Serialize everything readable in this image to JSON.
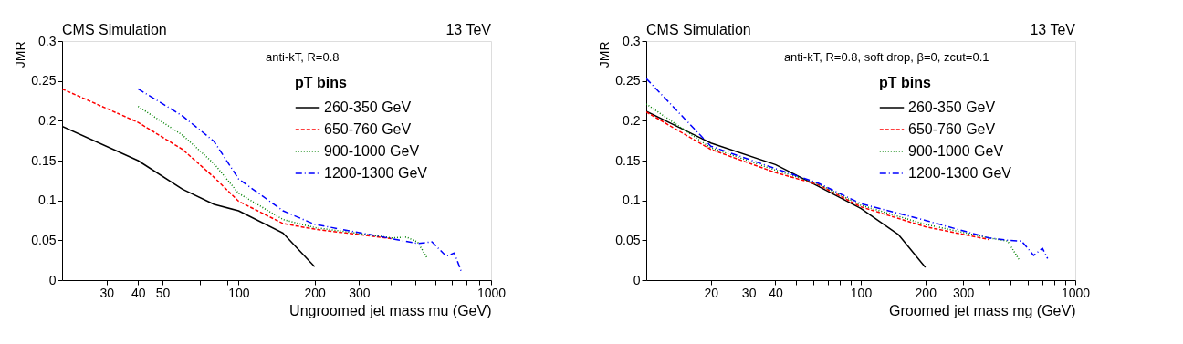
{
  "chart_data": [
    {
      "type": "line",
      "title": "CMS Simulation",
      "xlabel": "Ungroomed jet mass mu (GeV)",
      "ylabel": "JMR",
      "legend_title": "pT bins",
      "annotations": [
        "13 TeV",
        "anti-kT, R=0.8"
      ],
      "log": "x",
      "grid": false,
      "legend": "top right",
      "marker": "none",
      "xlim": [
        20,
        1000
      ],
      "ylim": [
        0,
        0.3
      ],
      "xticks": [
        30,
        40,
        50,
        {
          "value": 60,
          "label": null
        },
        {
          "value": 70,
          "label": null
        },
        {
          "value": 80,
          "label": null
        },
        {
          "value": 90,
          "label": null
        },
        100,
        200,
        300,
        {
          "value": 400,
          "label": null
        },
        {
          "value": 500,
          "label": null
        },
        {
          "value": 600,
          "label": null
        },
        {
          "value": 700,
          "label": null
        },
        {
          "value": 800,
          "label": null
        },
        {
          "value": 900,
          "label": null
        },
        1000
      ],
      "yticks": [
        0,
        0.05,
        0.1,
        0.15,
        0.2,
        0.25,
        0.3
      ],
      "series": [
        {
          "name": "260-350 GeV",
          "color": "#000000",
          "line_style": "solid",
          "x": [
            20,
            40,
            60,
            80,
            100,
            150,
            200
          ],
          "values": [
            0.193,
            0.15,
            0.114,
            0.095,
            0.087,
            0.059,
            0.017
          ]
        },
        {
          "name": "650-760 GeV",
          "color": "#ff0000",
          "line_style": "dashed",
          "x": [
            20,
            40,
            60,
            80,
            100,
            119,
            150,
            200,
            405
          ],
          "values": [
            0.24,
            0.198,
            0.164,
            0.129,
            0.099,
            0.087,
            0.071,
            0.064,
            0.052
          ]
        },
        {
          "name": "900-1000 GeV",
          "color": "#008000",
          "line_style": "dotted",
          "x": [
            40,
            60,
            80,
            100,
            150,
            200,
            405,
            462,
            511,
            558
          ],
          "values": [
            0.218,
            0.182,
            0.146,
            0.109,
            0.076,
            0.066,
            0.053,
            0.054,
            0.048,
            0.028
          ]
        },
        {
          "name": "1200-1300 GeV",
          "color": "#0000ff",
          "line_style": "dashdot",
          "x": [
            40,
            60,
            80,
            100,
            150,
            200,
            405,
            511,
            583,
            665,
            715,
            762
          ],
          "values": [
            0.24,
            0.206,
            0.174,
            0.127,
            0.087,
            0.07,
            0.052,
            0.046,
            0.048,
            0.03,
            0.034,
            0.011
          ]
        }
      ]
    },
    {
      "type": "line",
      "title": "CMS Simulation",
      "xlabel": "Groomed jet mass mg (GeV)",
      "ylabel": "JMR",
      "legend_title": "pT bins",
      "annotations": [
        "13 TeV",
        "anti-kT, R=0.8, soft drop, β=0, zcut=0.1"
      ],
      "log": "x",
      "grid": false,
      "legend": "top right",
      "marker": "none",
      "xlim": [
        10,
        1000
      ],
      "ylim": [
        0,
        0.3
      ],
      "xticks": [
        20,
        30,
        40,
        {
          "value": 50,
          "label": null
        },
        {
          "value": 60,
          "label": null
        },
        {
          "value": 70,
          "label": null
        },
        {
          "value": 80,
          "label": null
        },
        {
          "value": 90,
          "label": null
        },
        100,
        200,
        300,
        {
          "value": 400,
          "label": null
        },
        {
          "value": 500,
          "label": null
        },
        {
          "value": 600,
          "label": null
        },
        {
          "value": 700,
          "label": null
        },
        {
          "value": 800,
          "label": null
        },
        {
          "value": 900,
          "label": null
        },
        1000
      ],
      "yticks": [
        0,
        0.05,
        0.1,
        0.15,
        0.2,
        0.25,
        0.3
      ],
      "series": [
        {
          "name": "260-350 GeV",
          "color": "#000000",
          "line_style": "solid",
          "x": [
            10,
            20,
            40,
            63,
            100,
            150,
            200
          ],
          "values": [
            0.212,
            0.172,
            0.145,
            0.118,
            0.09,
            0.057,
            0.016
          ]
        },
        {
          "name": "650-760 GeV",
          "color": "#ff0000",
          "line_style": "dashed",
          "x": [
            10,
            20,
            40,
            63,
            100,
            200,
            395
          ],
          "values": [
            0.211,
            0.164,
            0.135,
            0.12,
            0.092,
            0.067,
            0.051
          ]
        },
        {
          "name": "900-1000 GeV",
          "color": "#008000",
          "line_style": "dotted",
          "x": [
            10,
            20,
            40,
            63,
            100,
            200,
            395,
            484,
            546
          ],
          "values": [
            0.221,
            0.166,
            0.138,
            0.121,
            0.094,
            0.07,
            0.053,
            0.049,
            0.026
          ]
        },
        {
          "name": "1200-1300 GeV",
          "color": "#0000ff",
          "line_style": "dashdot",
          "x": [
            10,
            20,
            40,
            63,
            100,
            200,
            395,
            484,
            562,
            640,
            703,
            743
          ],
          "values": [
            0.253,
            0.168,
            0.14,
            0.122,
            0.096,
            0.075,
            0.053,
            0.05,
            0.049,
            0.031,
            0.04,
            0.027
          ]
        }
      ]
    }
  ]
}
